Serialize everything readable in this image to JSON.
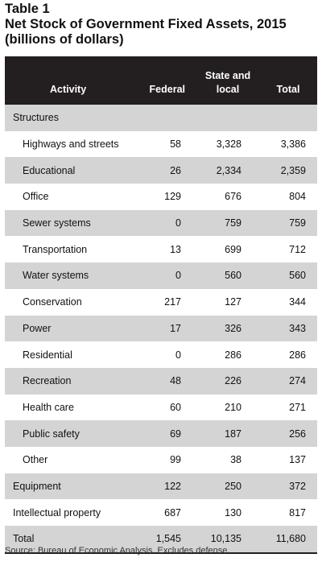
{
  "title": {
    "line1": "Table 1",
    "line2": "Net Stock of Government Fixed Assets, 2015",
    "line3": "(billions of dollars)"
  },
  "headers": {
    "activity": "Activity",
    "federal": "Federal",
    "state_local_1": "State and",
    "state_local_2": "local",
    "total": "Total"
  },
  "rows": [
    {
      "activity": "Structures",
      "federal": "",
      "state_local": "",
      "total": "",
      "indent": false
    },
    {
      "activity": "Highways and streets",
      "federal": "58",
      "state_local": "3,328",
      "total": "3,386",
      "indent": true
    },
    {
      "activity": "Educational",
      "federal": "26",
      "state_local": "2,334",
      "total": "2,359",
      "indent": true
    },
    {
      "activity": "Office",
      "federal": "129",
      "state_local": "676",
      "total": "804",
      "indent": true
    },
    {
      "activity": "Sewer systems",
      "federal": "0",
      "state_local": "759",
      "total": "759",
      "indent": true
    },
    {
      "activity": "Transportation",
      "federal": "13",
      "state_local": "699",
      "total": "712",
      "indent": true
    },
    {
      "activity": "Water systems",
      "federal": "0",
      "state_local": "560",
      "total": "560",
      "indent": true
    },
    {
      "activity": "Conservation",
      "federal": "217",
      "state_local": "127",
      "total": "344",
      "indent": true
    },
    {
      "activity": "Power",
      "federal": "17",
      "state_local": "326",
      "total": "343",
      "indent": true
    },
    {
      "activity": "Residential",
      "federal": "0",
      "state_local": "286",
      "total": "286",
      "indent": true
    },
    {
      "activity": "Recreation",
      "federal": "48",
      "state_local": "226",
      "total": "274",
      "indent": true
    },
    {
      "activity": "Health care",
      "federal": "60",
      "state_local": "210",
      "total": "271",
      "indent": true
    },
    {
      "activity": "Public safety",
      "federal": "69",
      "state_local": "187",
      "total": "256",
      "indent": true
    },
    {
      "activity": "Other",
      "federal": "99",
      "state_local": "38",
      "total": "137",
      "indent": true
    },
    {
      "activity": "Equipment",
      "federal": "122",
      "state_local": "250",
      "total": "372",
      "indent": false
    },
    {
      "activity": "Intellectual property",
      "federal": "687",
      "state_local": "130",
      "total": "817",
      "indent": false
    },
    {
      "activity": "Total",
      "federal": "1,545",
      "state_local": "10,135",
      "total": "11,680",
      "indent": false
    }
  ],
  "source": "Source: Bureau of Economic Analysis. Excludes defense.",
  "colors": {
    "header_bg": "#231f20",
    "shaded_row": "#d4d4d4"
  }
}
